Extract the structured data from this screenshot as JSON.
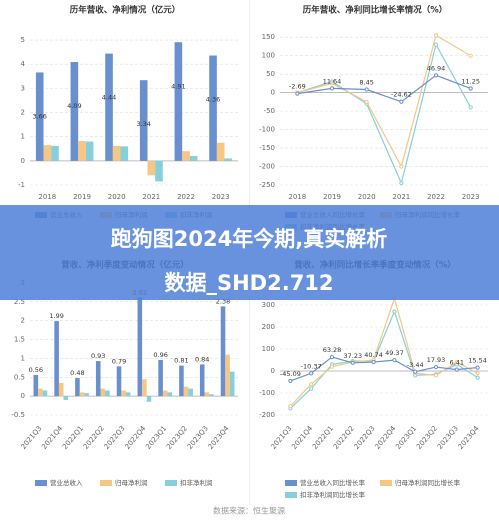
{
  "banner": [
    "跑狗图2024年今期,真实解析",
    "数据_SHD2.712"
  ],
  "source": "数据来源：恒生聚源",
  "chart_data": [
    {
      "type": "bar",
      "title": "历年营收、净利情况（亿元）",
      "categories": [
        "2018",
        "2019",
        "2020",
        "2021",
        "2022",
        "2023"
      ],
      "series": [
        {
          "name": "营业总收入",
          "color": "#6a8fcf",
          "values": [
            3.66,
            4.09,
            4.44,
            3.34,
            4.91,
            4.36
          ]
        },
        {
          "name": "归母净利润",
          "color": "#f6c683",
          "values": [
            0.65,
            0.82,
            0.62,
            -0.6,
            0.4,
            0.75
          ]
        },
        {
          "name": "扣非净利润",
          "color": "#86cfdc",
          "values": [
            0.62,
            0.8,
            0.6,
            -0.85,
            0.2,
            0.1
          ]
        }
      ],
      "ylim": [
        -1,
        5.5
      ],
      "yticks": [
        -1,
        0,
        1,
        2,
        3,
        4,
        5
      ],
      "grid": true
    },
    {
      "type": "line",
      "title": "历年营收、净利同比增长率情况（%）",
      "categories": [
        "2018",
        "2019",
        "2020",
        "2021",
        "2022",
        "2023"
      ],
      "series": [
        {
          "name": "营业总收入同比增长率",
          "color": "#6a8fcf",
          "values": [
            -2.69,
            11.64,
            8.45,
            -24.62,
            46.94,
            11.25
          ]
        },
        {
          "name": "归母净利润同比增长率",
          "color": "#f6c683",
          "values": [
            0,
            25,
            -25,
            -200,
            155,
            100
          ]
        },
        {
          "name": "扣非净利润同比增长率",
          "color": "#86cfdc",
          "values": [
            0,
            30,
            -30,
            -245,
            130,
            -40
          ]
        }
      ],
      "ylim": [
        -250,
        175
      ],
      "yticks": [
        -250,
        -200,
        -150,
        -100,
        -50,
        0,
        50,
        100,
        150
      ],
      "grid": true
    },
    {
      "type": "bar",
      "title": "营收、净利季度变动情况（亿元）",
      "categories": [
        "2021Q3",
        "2021Q4",
        "2022Q1",
        "2022Q2",
        "2022Q3",
        "2022Q4",
        "2023Q1",
        "2023Q2",
        "2023Q3",
        "2023Q4"
      ],
      "series": [
        {
          "name": "营业总收入",
          "color": "#6a8fcf",
          "values": [
            0.56,
            1.99,
            0.48,
            0.93,
            0.79,
            2.62,
            0.96,
            0.81,
            0.84,
            2.38
          ]
        },
        {
          "name": "归母净利润",
          "color": "#f6c683",
          "values": [
            0.2,
            0.35,
            0.1,
            0.2,
            0.15,
            0.45,
            0.15,
            0.25,
            0.1,
            1.1
          ]
        },
        {
          "name": "扣非净利润",
          "color": "#86cfdc",
          "values": [
            0.15,
            -0.1,
            0.08,
            0.15,
            0.1,
            -0.15,
            0.1,
            0.2,
            0.05,
            0.65
          ]
        }
      ],
      "ylim": [
        -0.5,
        3
      ],
      "yticks": [
        -0.5,
        0,
        0.5,
        1,
        1.5,
        2,
        2.5,
        3
      ],
      "grid": true
    },
    {
      "type": "line",
      "title": "营收、净利同比增长率季度变动情况（%）",
      "categories": [
        "2021Q3",
        "2021Q4",
        "2022Q1",
        "2022Q2",
        "2022Q3",
        "2022Q4",
        "2023Q1",
        "2023Q2",
        "2023Q3",
        "2023Q4"
      ],
      "series": [
        {
          "name": "营业总收入同比增长率",
          "color": "#6a8fcf",
          "values": [
            -45.09,
            -10.37,
            63.28,
            37.23,
            40.74,
            49.37,
            -3.44,
            17.93,
            6.41,
            15.54
          ]
        },
        {
          "name": "归母净利润同比增长率",
          "color": "#f6c683",
          "values": [
            -160,
            -60,
            20,
            40,
            50,
            330,
            -10,
            -20,
            40,
            -10
          ]
        },
        {
          "name": "扣非净利润同比增长率",
          "color": "#86cfdc",
          "values": [
            -170,
            -80,
            30,
            45,
            45,
            270,
            -20,
            -15,
            30,
            -30
          ]
        }
      ],
      "ylim": [
        -200,
        400
      ],
      "yticks": [
        -200,
        -100,
        0,
        100,
        200,
        300,
        400
      ],
      "grid": true
    }
  ]
}
